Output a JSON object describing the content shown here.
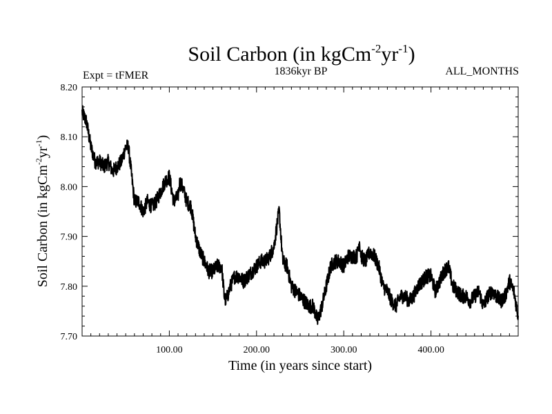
{
  "chart_data": {
    "type": "line",
    "title": {
      "main": "Soil Carbon (in kgCm",
      "sup1": "-2",
      "mid": "yr",
      "sup2": "-1",
      "end": ")"
    },
    "experiment_label": "Expt = tFMER",
    "period_label": "1836kyr BP",
    "months_label": "ALL_MONTHS",
    "xlabel": "Time (in years since start)",
    "ylabel": {
      "main": "Soil Carbon (in kgCm",
      "sup1": "-2",
      "mid": "yr",
      "sup2": "-1",
      "end": ")"
    },
    "xlim": [
      0,
      500
    ],
    "ylim": [
      7.7,
      8.2
    ],
    "x_ticks": [
      {
        "value": 100,
        "label": "100.00"
      },
      {
        "value": 200,
        "label": "200.00"
      },
      {
        "value": 300,
        "label": "300.00"
      },
      {
        "value": 400,
        "label": "400.00"
      }
    ],
    "y_ticks": [
      {
        "value": 7.7,
        "label": "7.70"
      },
      {
        "value": 7.8,
        "label": "7.80"
      },
      {
        "value": 7.9,
        "label": "7.90"
      },
      {
        "value": 8.0,
        "label": "8.00"
      },
      {
        "value": 8.1,
        "label": "8.10"
      },
      {
        "value": 8.2,
        "label": "8.20"
      }
    ],
    "grid": false,
    "line_color": "#000000",
    "series": [
      {
        "x": [
          0,
          5,
          10,
          15,
          20,
          25,
          30,
          35,
          40,
          45,
          50,
          53,
          55,
          60,
          65,
          70,
          75,
          80,
          85,
          90,
          95,
          100,
          105,
          110,
          112,
          115,
          120,
          125,
          130,
          135,
          140,
          145,
          150,
          155,
          160,
          163,
          165,
          170,
          175,
          180,
          185,
          190,
          195,
          200,
          205,
          210,
          215,
          220,
          224,
          226,
          230,
          235,
          240,
          245,
          250,
          255,
          260,
          265,
          270,
          275,
          280,
          285,
          290,
          295,
          300,
          305,
          310,
          315,
          318,
          320,
          325,
          330,
          335,
          340,
          345,
          350,
          355,
          360,
          365,
          370,
          375,
          380,
          385,
          390,
          395,
          400,
          405,
          410,
          415,
          420,
          425,
          430,
          435,
          440,
          445,
          450,
          455,
          460,
          465,
          470,
          475,
          480,
          485,
          490,
          495,
          500
        ],
        "values": [
          8.15,
          8.13,
          8.08,
          8.05,
          8.05,
          8.04,
          8.05,
          8.03,
          8.04,
          8.05,
          8.08,
          8.08,
          8.05,
          7.97,
          7.97,
          7.95,
          7.97,
          7.96,
          7.97,
          7.99,
          8.01,
          8.02,
          7.97,
          7.98,
          8.01,
          8.0,
          7.97,
          7.96,
          7.9,
          7.87,
          7.85,
          7.83,
          7.83,
          7.84,
          7.84,
          7.78,
          7.77,
          7.8,
          7.82,
          7.82,
          7.81,
          7.82,
          7.83,
          7.84,
          7.85,
          7.85,
          7.86,
          7.88,
          7.93,
          7.95,
          7.85,
          7.84,
          7.8,
          7.79,
          7.78,
          7.77,
          7.76,
          7.76,
          7.73,
          7.76,
          7.8,
          7.84,
          7.85,
          7.85,
          7.84,
          7.86,
          7.86,
          7.86,
          7.89,
          7.86,
          7.85,
          7.87,
          7.86,
          7.84,
          7.8,
          7.79,
          7.77,
          7.76,
          7.78,
          7.78,
          7.77,
          7.78,
          7.8,
          7.81,
          7.82,
          7.82,
          7.79,
          7.81,
          7.83,
          7.84,
          7.8,
          7.79,
          7.78,
          7.78,
          7.77,
          7.78,
          7.79,
          7.76,
          7.78,
          7.79,
          7.78,
          7.77,
          7.78,
          7.81,
          7.79,
          7.74
        ]
      }
    ]
  }
}
